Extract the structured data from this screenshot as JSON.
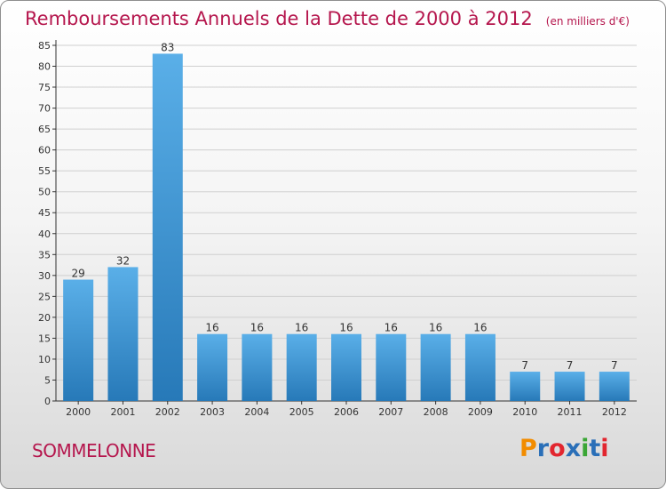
{
  "header": {
    "title": "Remboursements Annuels de la Dette de 2000 à 2012",
    "unit": "(en milliers d'€)"
  },
  "footer": {
    "commune": "SOMMELONNE",
    "brand": "Proxiti",
    "brand_colors": [
      "#f28c00",
      "#2a6fb8",
      "#e2262f",
      "#2a6fb8",
      "#3aa635",
      "#2a6fb8",
      "#e2262f"
    ]
  },
  "colors": {
    "title": "#b5164d",
    "bar_light": "#5aafe8",
    "bar_dark": "#2779b8",
    "grid": "#d0d0d0",
    "axis": "#333333"
  },
  "chart_data": {
    "type": "bar",
    "title": "Remboursements Annuels de la Dette de 2000 à 2012",
    "subtitle": "(en milliers d'€)",
    "categories": [
      "2000",
      "2001",
      "2002",
      "2003",
      "2004",
      "2005",
      "2006",
      "2007",
      "2008",
      "2009",
      "2010",
      "2011",
      "2012"
    ],
    "values": [
      29,
      32,
      83,
      16,
      16,
      16,
      16,
      16,
      16,
      16,
      7,
      7,
      7
    ],
    "data_labels": [
      "29",
      "32",
      "83",
      "16",
      "16",
      "16",
      "16",
      "16",
      "16",
      "16",
      "7",
      "7",
      "7"
    ],
    "yticks": [
      0,
      5,
      10,
      15,
      20,
      25,
      30,
      35,
      40,
      45,
      50,
      55,
      60,
      65,
      70,
      75,
      80,
      85
    ],
    "ylim": [
      0,
      85
    ],
    "grid": true,
    "legend": "none"
  }
}
